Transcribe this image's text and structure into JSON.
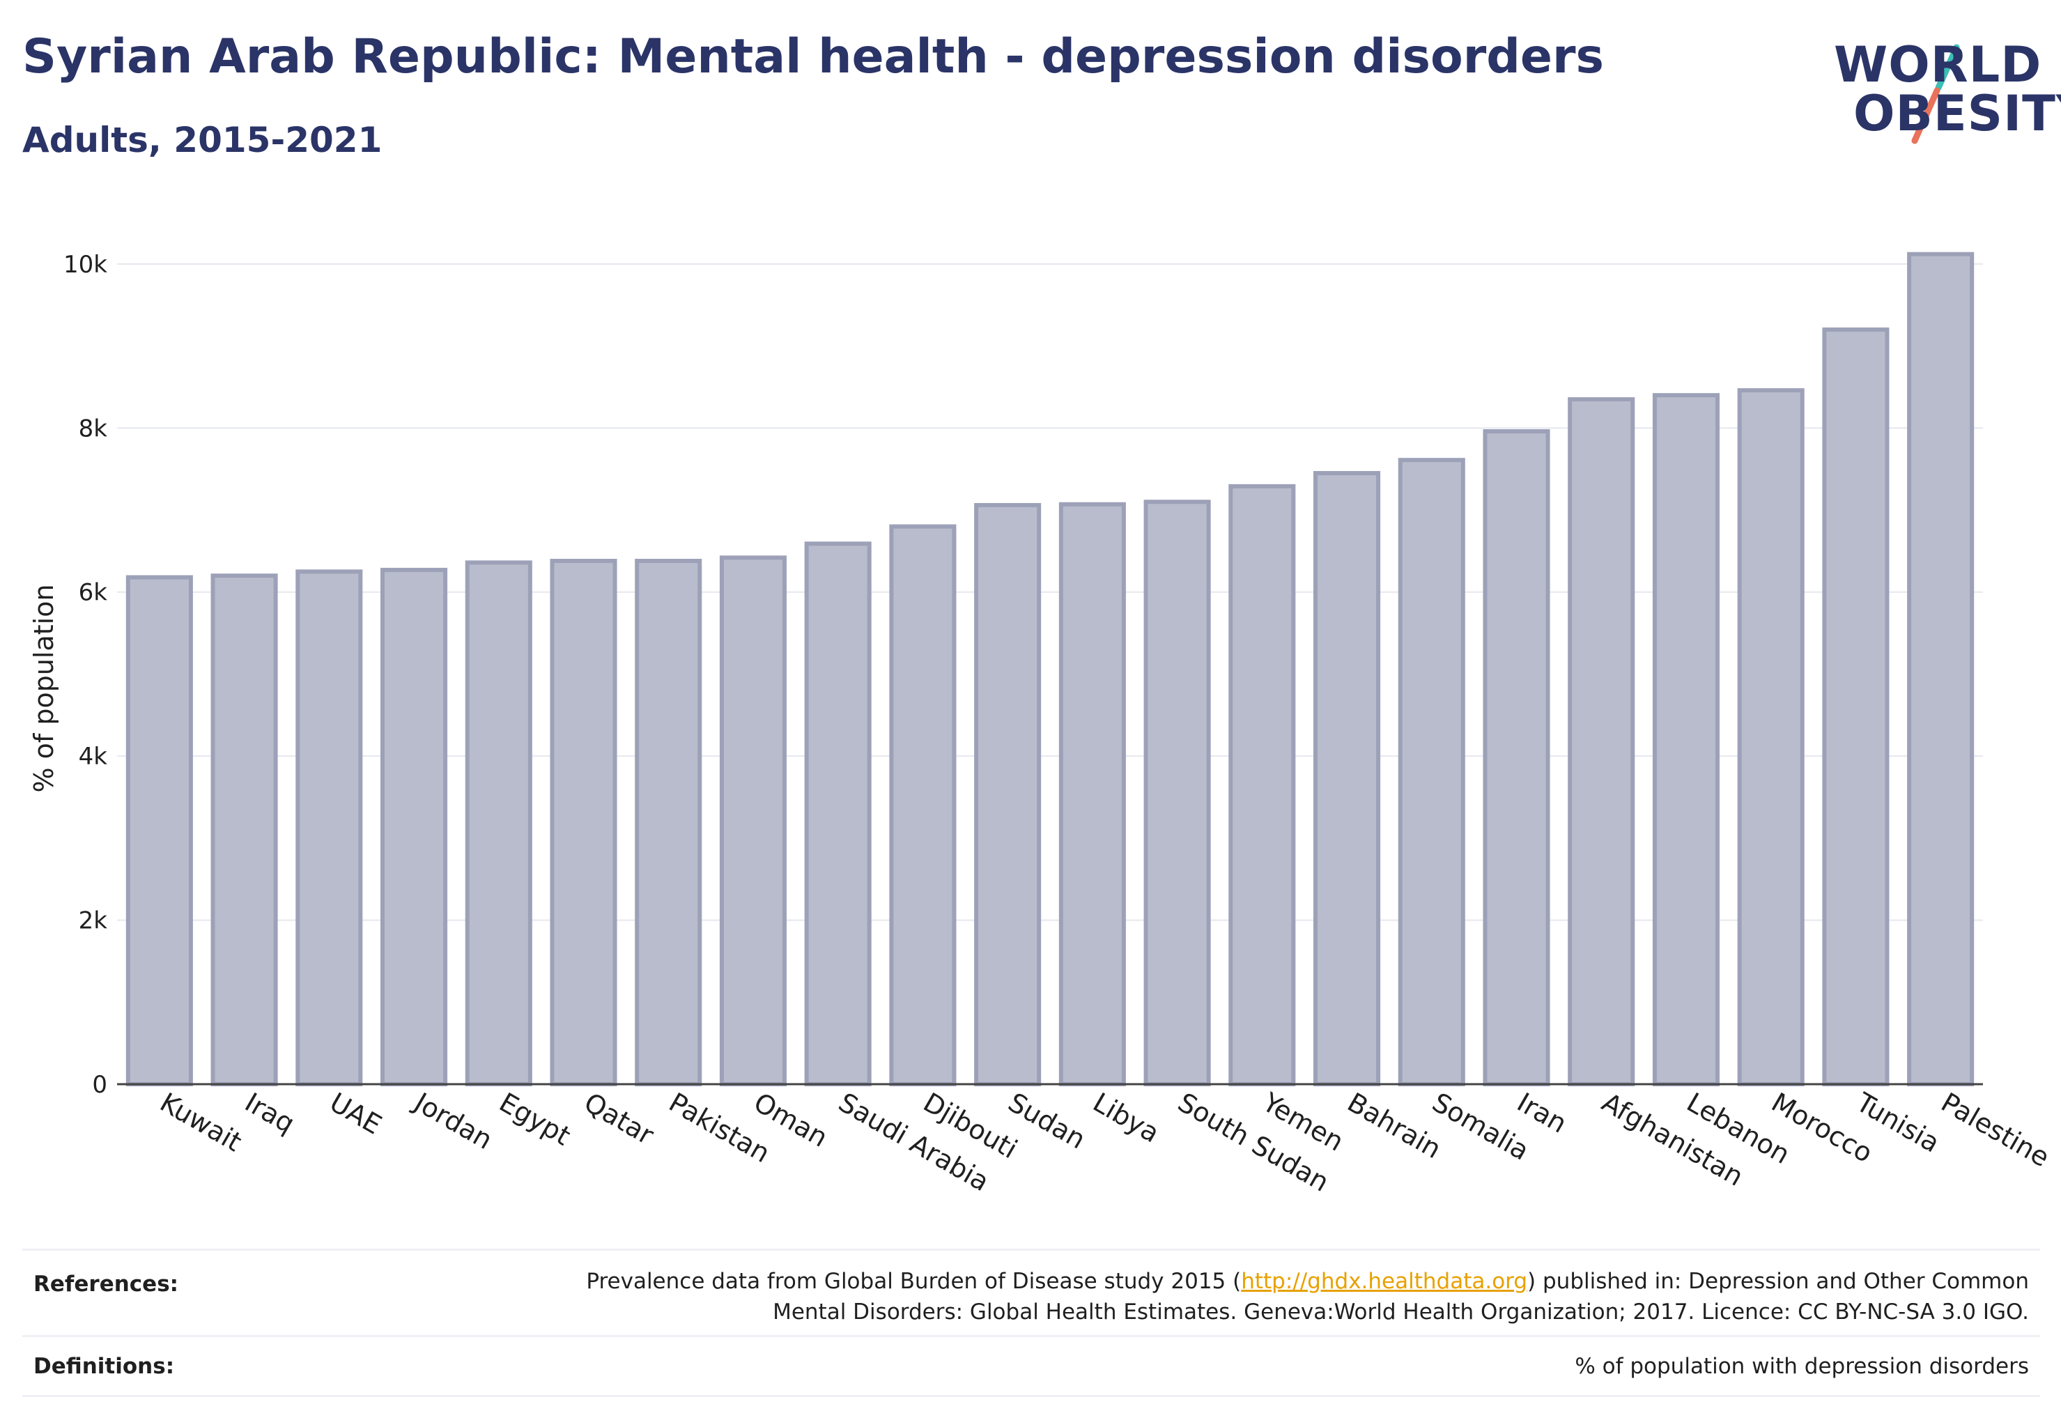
{
  "header": {
    "title": "Syrian Arab Republic: Mental health - depression disorders",
    "subtitle": "Adults, 2015-2021"
  },
  "logo": {
    "line1": "WORLD",
    "line2": "OBESITY",
    "accent_teal": "#3bbfb7",
    "accent_coral": "#e8735a"
  },
  "chart_data": {
    "type": "bar",
    "ylabel": "% of population",
    "xlabel": "",
    "ylim": [
      0,
      10500
    ],
    "yticks": [
      0,
      2000,
      4000,
      6000,
      8000,
      10000
    ],
    "ytick_labels": [
      "0",
      "2k",
      "4k",
      "6k",
      "8k",
      "10k"
    ],
    "grid": true,
    "bar_color": "#b9bccc",
    "bar_edge_color": "#9da1b8",
    "categories": [
      "Kuwait",
      "Iraq",
      "UAE",
      "Jordan",
      "Egypt",
      "Qatar",
      "Pakistan",
      "Oman",
      "Saudi Arabia",
      "Djibouti",
      "Sudan",
      "Libya",
      "South Sudan",
      "Yemen",
      "Bahrain",
      "Somalia",
      "Iran",
      "Afghanistan",
      "Lebanon",
      "Morocco",
      "Tunisia",
      "Palestine"
    ],
    "values": [
      6180,
      6200,
      6250,
      6270,
      6360,
      6380,
      6380,
      6420,
      6590,
      6800,
      7060,
      7070,
      7100,
      7290,
      7450,
      7610,
      7960,
      8350,
      8400,
      8460,
      9200,
      10120
    ]
  },
  "footer": {
    "references_label": "References:",
    "references_text_1": "Prevalence data from Global Burden of Disease study 2015 (",
    "references_link": "http://ghdx.healthdata.org",
    "references_text_2": ") published in: Depression and Other Common",
    "references_text_3": "Mental Disorders: Global Health Estimates. Geneva:World Health Organization; 2017. Licence: CC BY-NC-SA 3.0 IGO.",
    "definitions_label": "Definitions:",
    "definitions_text": "% of population with depression disorders"
  }
}
